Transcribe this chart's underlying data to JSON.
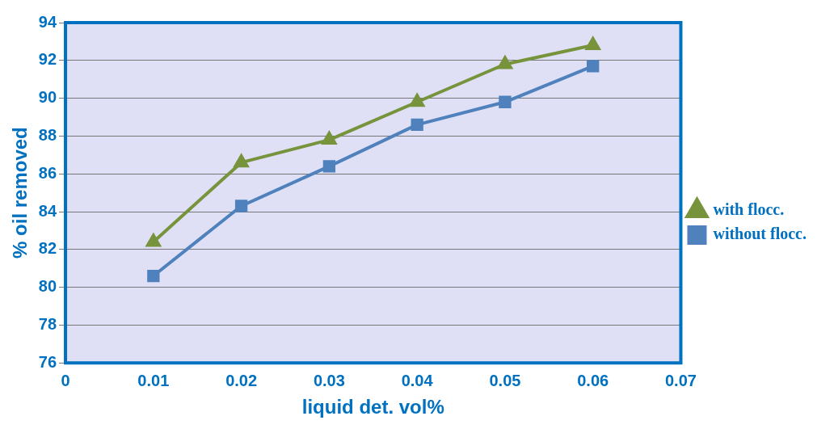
{
  "chart_data": {
    "type": "line",
    "xlabel": "liquid det. vol%",
    "ylabel": "% oil removed",
    "x": [
      0.01,
      0.02,
      0.03,
      0.04,
      0.05,
      0.06
    ],
    "series": [
      {
        "name": "with flocc.",
        "color": "#77933c",
        "marker": "triangle",
        "values": [
          82.4,
          86.6,
          87.8,
          89.8,
          91.8,
          92.8
        ]
      },
      {
        "name": "without flocc.",
        "color": "#4f81bd",
        "marker": "square",
        "values": [
          80.6,
          84.3,
          86.4,
          88.6,
          89.8,
          91.7
        ]
      }
    ],
    "xlim": [
      0,
      0.07
    ],
    "xticks": [
      0,
      0.01,
      0.02,
      0.03,
      0.04,
      0.05,
      0.06,
      0.07
    ],
    "ylim": [
      76,
      94
    ],
    "yticks": [
      76,
      78,
      80,
      82,
      84,
      86,
      88,
      90,
      92,
      94
    ],
    "grid": "y",
    "legend": "right"
  }
}
